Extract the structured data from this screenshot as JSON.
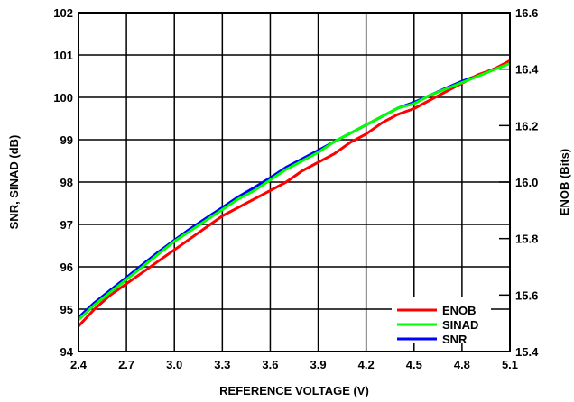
{
  "chart_data": {
    "type": "line",
    "xlabel": "REFERENCE VOLTAGE (V)",
    "ylabel_left": "SNR, SINAD (dB)",
    "ylabel_right": "ENOB (Bits)",
    "xlim": [
      2.4,
      5.1
    ],
    "ylim_left": [
      94,
      102
    ],
    "ylim_right": [
      15.4,
      16.6
    ],
    "x_ticks": [
      "2.4",
      "2.7",
      "3.0",
      "3.3",
      "3.6",
      "3.9",
      "4.2",
      "4.5",
      "4.8",
      "5.1"
    ],
    "y_ticks_left": [
      "94",
      "95",
      "96",
      "97",
      "98",
      "99",
      "100",
      "101",
      "102"
    ],
    "y_ticks_right": [
      "15.4",
      "15.6",
      "15.8",
      "16.0",
      "16.2",
      "16.4",
      "16.6"
    ],
    "grid": true,
    "legend_position": "bottom-right",
    "x": [
      2.4,
      2.5,
      2.6,
      2.7,
      2.8,
      2.9,
      3.0,
      3.1,
      3.2,
      3.3,
      3.4,
      3.5,
      3.6,
      3.7,
      3.8,
      3.9,
      4.0,
      4.1,
      4.2,
      4.3,
      4.4,
      4.5,
      4.6,
      4.7,
      4.8,
      4.9,
      5.0,
      5.1
    ],
    "series": [
      {
        "name": "ENOB",
        "color": "#ff0000",
        "axis": "right",
        "values": [
          15.49,
          15.55,
          15.6,
          15.64,
          15.68,
          15.72,
          15.76,
          15.8,
          15.84,
          15.88,
          15.91,
          15.94,
          15.97,
          16.0,
          16.04,
          16.07,
          16.1,
          16.14,
          16.17,
          16.21,
          16.24,
          16.26,
          16.29,
          16.32,
          16.35,
          16.38,
          16.4,
          16.43
        ]
      },
      {
        "name": "SINAD",
        "color": "#00ff00",
        "axis": "left",
        "values": [
          94.75,
          95.1,
          95.4,
          95.7,
          96.0,
          96.3,
          96.6,
          96.85,
          97.1,
          97.35,
          97.6,
          97.8,
          98.05,
          98.3,
          98.5,
          98.7,
          98.95,
          99.15,
          99.35,
          99.55,
          99.75,
          99.85,
          100.05,
          100.2,
          100.35,
          100.5,
          100.65,
          100.8
        ]
      },
      {
        "name": "SNR",
        "color": "#0000ff",
        "axis": "left",
        "values": [
          94.8,
          95.15,
          95.45,
          95.75,
          96.05,
          96.35,
          96.63,
          96.9,
          97.15,
          97.4,
          97.65,
          97.87,
          98.1,
          98.35,
          98.55,
          98.75,
          98.95,
          99.15,
          99.35,
          99.55,
          99.75,
          99.88,
          100.05,
          100.22,
          100.38,
          100.52,
          100.67,
          100.82
        ]
      }
    ]
  }
}
